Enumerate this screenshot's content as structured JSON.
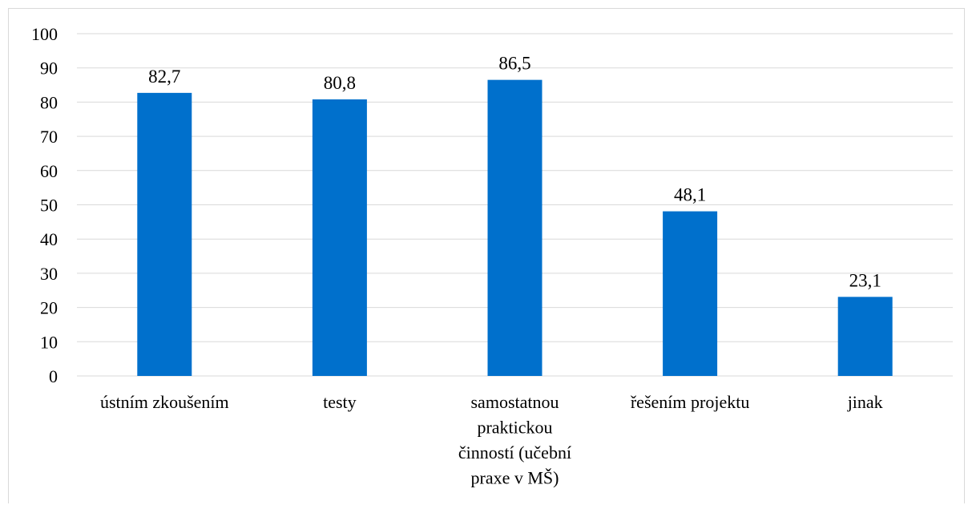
{
  "chart_data": {
    "type": "bar",
    "title": "",
    "xlabel": "",
    "ylabel": "",
    "ylim": [
      0,
      100
    ],
    "yticks": [
      0,
      10,
      20,
      30,
      40,
      50,
      60,
      70,
      80,
      90,
      100
    ],
    "grid": true,
    "legend": "none",
    "bar_color": "#0070cc",
    "categories": [
      [
        "ústním zkoušením"
      ],
      [
        "testy"
      ],
      [
        "samostatnou",
        "praktickou",
        "činností (učební",
        "praxe v MŠ)"
      ],
      [
        "řešením projektu"
      ],
      [
        "jinak"
      ]
    ],
    "values": [
      82.7,
      80.8,
      86.5,
      48.1,
      23.1
    ],
    "data_labels": [
      "82,7",
      "80,8",
      "86,5",
      "48,1",
      "23,1"
    ]
  }
}
